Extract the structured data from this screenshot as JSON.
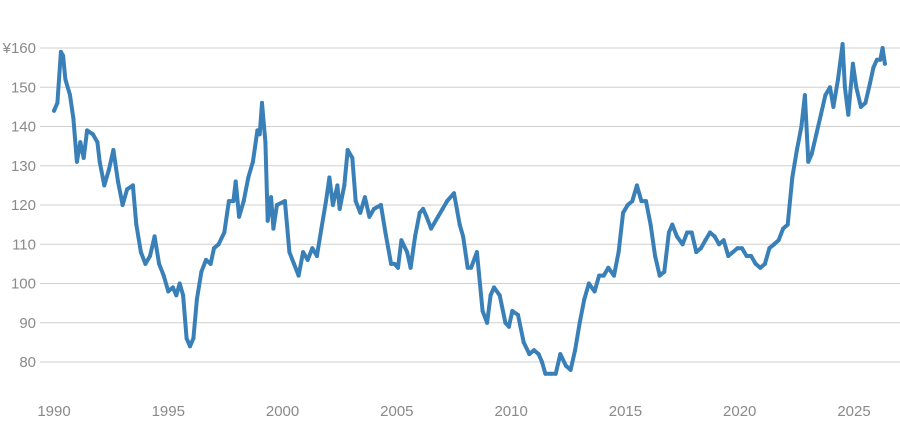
{
  "chart_data": {
    "type": "line",
    "title": "",
    "xlabel": "",
    "ylabel": "",
    "xlim": [
      1990,
      2026.4
    ],
    "ylim": [
      75,
      162
    ],
    "grid": true,
    "legend": "none",
    "x_ticks": [
      {
        "value": 1990,
        "label": "1990"
      },
      {
        "value": 1995,
        "label": "1995"
      },
      {
        "value": 2000,
        "label": "2000"
      },
      {
        "value": 2005,
        "label": "2005"
      },
      {
        "value": 2010,
        "label": "2010"
      },
      {
        "value": 2015,
        "label": "2015"
      },
      {
        "value": 2020,
        "label": "2020"
      },
      {
        "value": 2025,
        "label": "2025"
      }
    ],
    "y_ticks": [
      {
        "value": 160,
        "label": "¥160"
      },
      {
        "value": 150,
        "label": "150"
      },
      {
        "value": 140,
        "label": "140"
      },
      {
        "value": 130,
        "label": "130"
      },
      {
        "value": 120,
        "label": "120"
      },
      {
        "value": 110,
        "label": "110"
      },
      {
        "value": 100,
        "label": "100"
      },
      {
        "value": 90,
        "label": "90"
      },
      {
        "value": 80,
        "label": "80"
      }
    ],
    "series": [
      {
        "color": "#3a80b8",
        "points": [
          [
            1990.0,
            144
          ],
          [
            1990.15,
            146
          ],
          [
            1990.3,
            159
          ],
          [
            1990.4,
            158
          ],
          [
            1990.5,
            152
          ],
          [
            1990.7,
            148
          ],
          [
            1990.85,
            142
          ],
          [
            1991.0,
            131
          ],
          [
            1991.15,
            136
          ],
          [
            1991.3,
            132
          ],
          [
            1991.45,
            139
          ],
          [
            1991.7,
            138
          ],
          [
            1991.9,
            136
          ],
          [
            1992.0,
            131
          ],
          [
            1992.2,
            125
          ],
          [
            1992.4,
            129
          ],
          [
            1992.6,
            134
          ],
          [
            1992.8,
            126
          ],
          [
            1993.0,
            120
          ],
          [
            1993.2,
            124
          ],
          [
            1993.45,
            125
          ],
          [
            1993.6,
            115
          ],
          [
            1993.8,
            108
          ],
          [
            1994.0,
            105
          ],
          [
            1994.2,
            107
          ],
          [
            1994.4,
            112
          ],
          [
            1994.6,
            105
          ],
          [
            1994.8,
            102
          ],
          [
            1995.0,
            98
          ],
          [
            1995.2,
            99
          ],
          [
            1995.35,
            97
          ],
          [
            1995.5,
            100
          ],
          [
            1995.65,
            97
          ],
          [
            1995.8,
            86
          ],
          [
            1995.95,
            84
          ],
          [
            1996.1,
            86
          ],
          [
            1996.25,
            96
          ],
          [
            1996.45,
            103
          ],
          [
            1996.65,
            106
          ],
          [
            1996.85,
            105
          ],
          [
            1997.0,
            109
          ],
          [
            1997.2,
            110
          ],
          [
            1997.45,
            113
          ],
          [
            1997.65,
            121
          ],
          [
            1997.85,
            121
          ],
          [
            1997.95,
            126
          ],
          [
            1998.1,
            117
          ],
          [
            1998.3,
            121
          ],
          [
            1998.5,
            127
          ],
          [
            1998.7,
            131
          ],
          [
            1998.9,
            139
          ],
          [
            1999.0,
            138
          ],
          [
            1999.1,
            146
          ],
          [
            1999.25,
            136
          ],
          [
            1999.35,
            116
          ],
          [
            1999.5,
            122
          ],
          [
            1999.6,
            114
          ],
          [
            1999.75,
            120
          ],
          [
            2000.1,
            121
          ],
          [
            2000.3,
            108
          ],
          [
            2000.5,
            105
          ],
          [
            2000.7,
            102
          ],
          [
            2000.9,
            108
          ],
          [
            2001.1,
            106
          ],
          [
            2001.3,
            109
          ],
          [
            2001.5,
            107
          ],
          [
            2001.7,
            114
          ],
          [
            2001.9,
            121
          ],
          [
            2002.05,
            127
          ],
          [
            2002.2,
            120
          ],
          [
            2002.4,
            125
          ],
          [
            2002.5,
            119
          ],
          [
            2002.7,
            125
          ],
          [
            2002.85,
            134
          ],
          [
            2003.05,
            132
          ],
          [
            2003.2,
            121
          ],
          [
            2003.4,
            118
          ],
          [
            2003.6,
            122
          ],
          [
            2003.8,
            117
          ],
          [
            2004.0,
            119
          ],
          [
            2004.3,
            120
          ],
          [
            2004.5,
            113
          ],
          [
            2004.75,
            105
          ],
          [
            2004.9,
            105
          ],
          [
            2005.05,
            104
          ],
          [
            2005.2,
            111
          ],
          [
            2005.45,
            108
          ],
          [
            2005.6,
            104
          ],
          [
            2005.8,
            112
          ],
          [
            2006.0,
            118
          ],
          [
            2006.15,
            119
          ],
          [
            2006.3,
            117
          ],
          [
            2006.5,
            114
          ],
          [
            2006.8,
            117
          ],
          [
            2007.0,
            119
          ],
          [
            2007.2,
            121
          ],
          [
            2007.5,
            123
          ],
          [
            2007.75,
            115
          ],
          [
            2007.9,
            112
          ],
          [
            2008.1,
            104
          ],
          [
            2008.25,
            104
          ],
          [
            2008.5,
            108
          ],
          [
            2008.75,
            93
          ],
          [
            2008.95,
            90
          ],
          [
            2009.1,
            97
          ],
          [
            2009.25,
            99
          ],
          [
            2009.5,
            97
          ],
          [
            2009.75,
            90
          ],
          [
            2009.9,
            89
          ],
          [
            2010.05,
            93
          ],
          [
            2010.3,
            92
          ],
          [
            2010.55,
            85
          ],
          [
            2010.8,
            82
          ],
          [
            2011.0,
            83
          ],
          [
            2011.2,
            82
          ],
          [
            2011.35,
            80
          ],
          [
            2011.5,
            77
          ],
          [
            2011.75,
            77
          ],
          [
            2011.95,
            77
          ],
          [
            2012.15,
            82
          ],
          [
            2012.4,
            79
          ],
          [
            2012.6,
            78
          ],
          [
            2012.8,
            83
          ],
          [
            2013.0,
            90
          ],
          [
            2013.2,
            96
          ],
          [
            2013.4,
            100
          ],
          [
            2013.65,
            98
          ],
          [
            2013.85,
            102
          ],
          [
            2014.05,
            102
          ],
          [
            2014.25,
            104
          ],
          [
            2014.5,
            102
          ],
          [
            2014.7,
            108
          ],
          [
            2014.9,
            118
          ],
          [
            2015.1,
            120
          ],
          [
            2015.3,
            121
          ],
          [
            2015.5,
            125
          ],
          [
            2015.7,
            121
          ],
          [
            2015.9,
            121
          ],
          [
            2016.1,
            115
          ],
          [
            2016.3,
            107
          ],
          [
            2016.5,
            102
          ],
          [
            2016.7,
            103
          ],
          [
            2016.9,
            113
          ],
          [
            2017.05,
            115
          ],
          [
            2017.25,
            112
          ],
          [
            2017.5,
            110
          ],
          [
            2017.7,
            113
          ],
          [
            2017.9,
            113
          ],
          [
            2018.1,
            108
          ],
          [
            2018.3,
            109
          ],
          [
            2018.5,
            111
          ],
          [
            2018.7,
            113
          ],
          [
            2018.9,
            112
          ],
          [
            2019.1,
            110
          ],
          [
            2019.3,
            111
          ],
          [
            2019.5,
            107
          ],
          [
            2019.7,
            108
          ],
          [
            2019.9,
            109
          ],
          [
            2020.1,
            109
          ],
          [
            2020.3,
            107
          ],
          [
            2020.5,
            107
          ],
          [
            2020.7,
            105
          ],
          [
            2020.9,
            104
          ],
          [
            2021.1,
            105
          ],
          [
            2021.3,
            109
          ],
          [
            2021.5,
            110
          ],
          [
            2021.7,
            111
          ],
          [
            2021.9,
            114
          ],
          [
            2022.1,
            115
          ],
          [
            2022.3,
            127
          ],
          [
            2022.5,
            134
          ],
          [
            2022.7,
            140
          ],
          [
            2022.85,
            148
          ],
          [
            2023.0,
            131
          ],
          [
            2023.15,
            133
          ],
          [
            2023.35,
            138
          ],
          [
            2023.55,
            143
          ],
          [
            2023.75,
            148
          ],
          [
            2023.95,
            150
          ],
          [
            2024.1,
            145
          ],
          [
            2024.3,
            152
          ],
          [
            2024.5,
            161
          ],
          [
            2024.6,
            150
          ],
          [
            2024.75,
            143
          ],
          [
            2024.95,
            156
          ],
          [
            2025.1,
            150
          ],
          [
            2025.3,
            145
          ],
          [
            2025.5,
            146
          ],
          [
            2025.7,
            151
          ],
          [
            2025.85,
            155
          ],
          [
            2026.0,
            157
          ],
          [
            2026.15,
            157
          ],
          [
            2026.25,
            160
          ],
          [
            2026.35,
            156
          ]
        ]
      }
    ]
  }
}
